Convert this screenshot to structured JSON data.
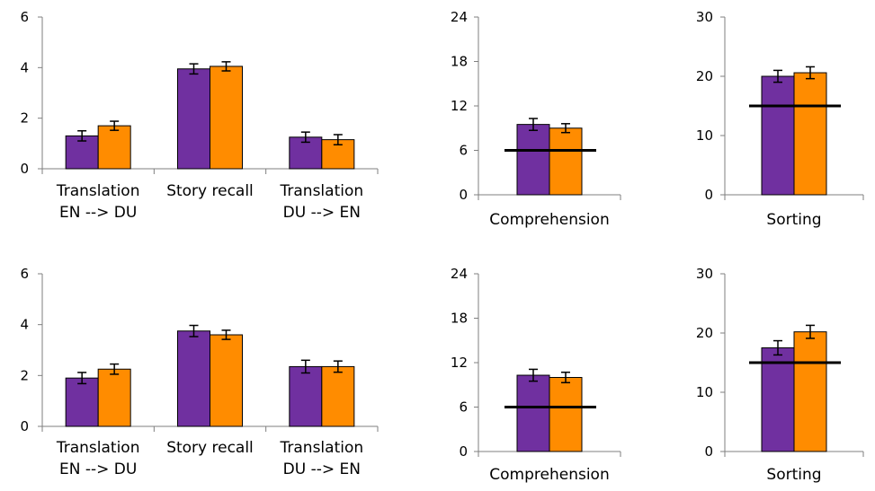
{
  "colors": {
    "series1": "#7030a0",
    "series2": "#ff8c00",
    "bar_stroke": "#000000",
    "axis": "#7f7f7f",
    "reference_line": "#000000"
  },
  "chart_data": [
    {
      "type": "bar",
      "categories": [
        [
          "Translation",
          "EN --> DU"
        ],
        [
          "Story recall"
        ],
        [
          "Translation",
          "DU --> EN"
        ]
      ],
      "series": [
        {
          "values": [
            1.3,
            3.95,
            1.25
          ],
          "errors": [
            0.2,
            0.2,
            0.2
          ]
        },
        {
          "values": [
            1.7,
            4.05,
            1.15
          ],
          "errors": [
            0.18,
            0.18,
            0.2
          ]
        }
      ],
      "ylim": [
        0,
        6
      ],
      "yticks": [
        0,
        2,
        4,
        6
      ],
      "grid": false,
      "legend": "none"
    },
    {
      "type": "bar",
      "categories": [
        [
          "Comprehension"
        ]
      ],
      "series": [
        {
          "values": [
            9.5
          ],
          "errors": [
            0.8
          ]
        },
        {
          "values": [
            9.0
          ],
          "errors": [
            0.6
          ]
        }
      ],
      "reference_line": 6,
      "ylim": [
        0,
        24
      ],
      "yticks": [
        0,
        6,
        12,
        18,
        24
      ],
      "grid": false,
      "legend": "none"
    },
    {
      "type": "bar",
      "categories": [
        [
          "Sorting"
        ]
      ],
      "series": [
        {
          "values": [
            20.0
          ],
          "errors": [
            1.0
          ]
        },
        {
          "values": [
            20.6
          ],
          "errors": [
            1.0
          ]
        }
      ],
      "reference_line": 15,
      "ylim": [
        0,
        30
      ],
      "yticks": [
        0,
        10,
        20,
        30
      ],
      "grid": false,
      "legend": "none"
    },
    {
      "type": "bar",
      "categories": [
        [
          "Translation",
          "EN --> DU"
        ],
        [
          "Story recall"
        ],
        [
          "Translation",
          "DU --> EN"
        ]
      ],
      "series": [
        {
          "values": [
            1.9,
            3.75,
            2.35
          ],
          "errors": [
            0.22,
            0.22,
            0.25
          ]
        },
        {
          "values": [
            2.25,
            3.6,
            2.35
          ],
          "errors": [
            0.2,
            0.18,
            0.22
          ]
        }
      ],
      "ylim": [
        0,
        6
      ],
      "yticks": [
        0,
        2,
        4,
        6
      ],
      "grid": false,
      "legend": "none"
    },
    {
      "type": "bar",
      "categories": [
        [
          "Comprehension"
        ]
      ],
      "series": [
        {
          "values": [
            10.3
          ],
          "errors": [
            0.8
          ]
        },
        {
          "values": [
            10.0
          ],
          "errors": [
            0.7
          ]
        }
      ],
      "reference_line": 6,
      "ylim": [
        0,
        24
      ],
      "yticks": [
        0,
        6,
        12,
        18,
        24
      ],
      "grid": false,
      "legend": "none"
    },
    {
      "type": "bar",
      "categories": [
        [
          "Sorting"
        ]
      ],
      "series": [
        {
          "values": [
            17.5
          ],
          "errors": [
            1.2
          ]
        },
        {
          "values": [
            20.2
          ],
          "errors": [
            1.1
          ]
        }
      ],
      "reference_line": 15,
      "ylim": [
        0,
        30
      ],
      "yticks": [
        0,
        10,
        20,
        30
      ],
      "grid": false,
      "legend": "none"
    }
  ]
}
